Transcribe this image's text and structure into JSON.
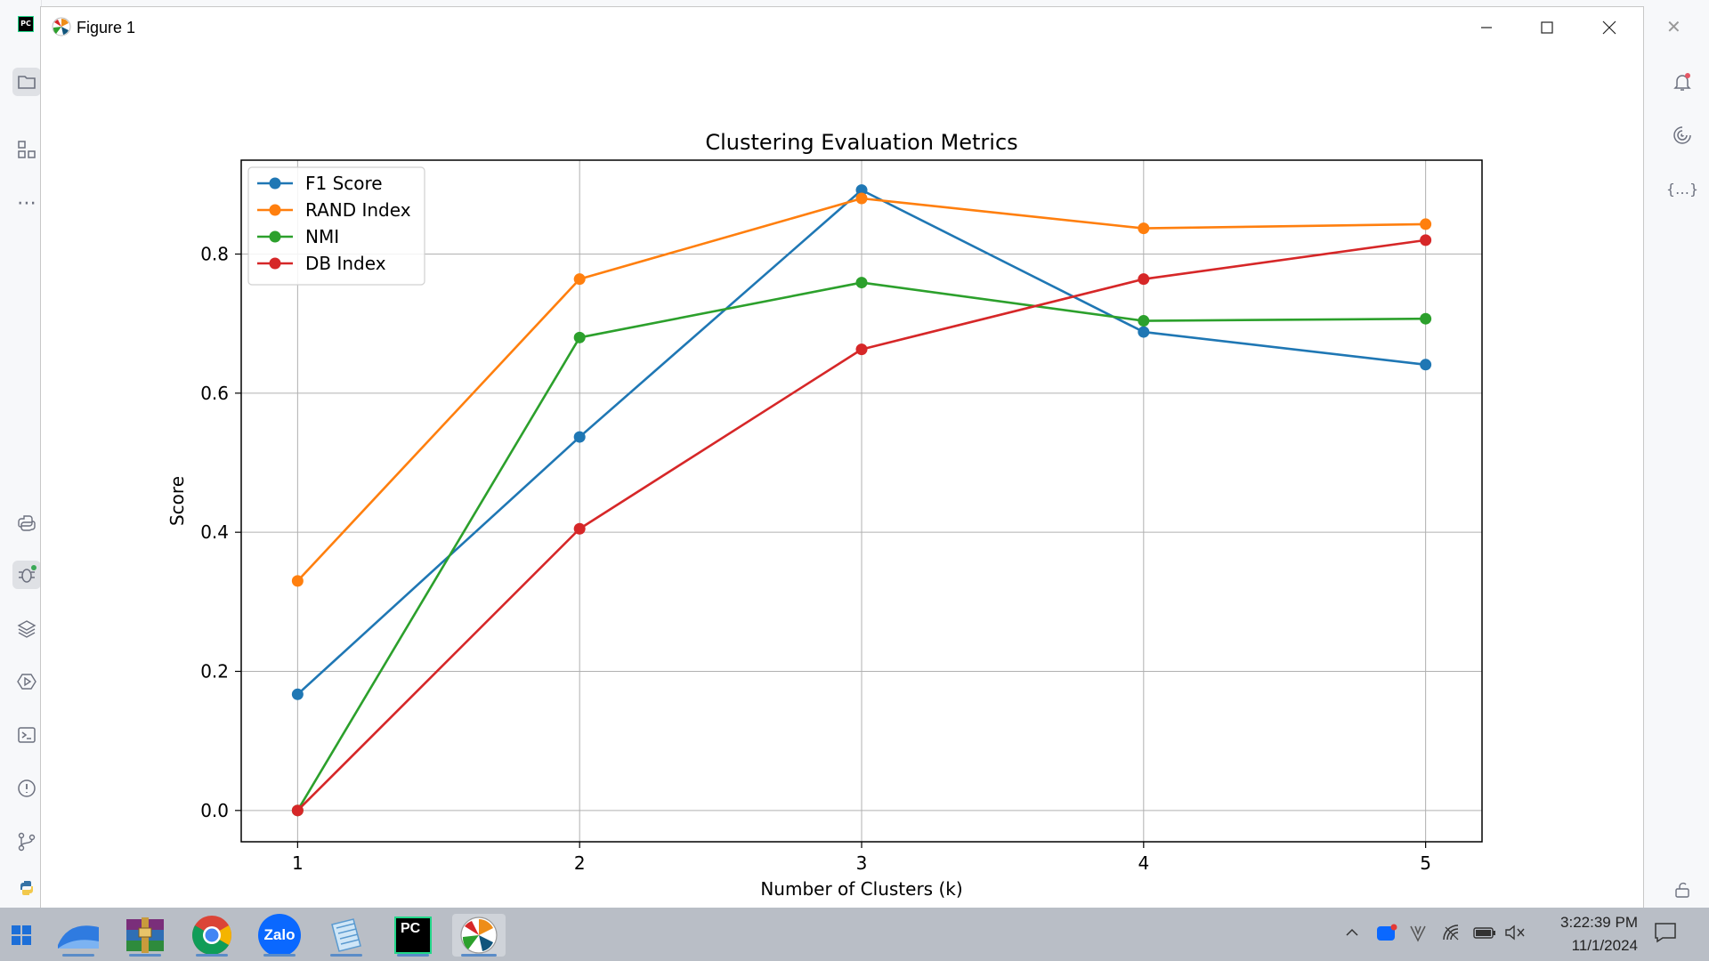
{
  "ide": {
    "logo_text": "PC"
  },
  "window": {
    "title": "Figure 1",
    "minimize_icon": "minimize-icon",
    "maximize_icon": "maximize-icon",
    "close_icon": "close-icon"
  },
  "chart_data": {
    "type": "line",
    "title": "Clustering Evaluation Metrics",
    "xlabel": "Number of Clusters (k)",
    "ylabel": "Score",
    "x": [
      1,
      2,
      3,
      4,
      5
    ],
    "xticks": [
      "1",
      "2",
      "3",
      "4",
      "5"
    ],
    "yticks": [
      "0.0",
      "0.2",
      "0.4",
      "0.6",
      "0.8"
    ],
    "xlim": [
      0.8,
      5.2
    ],
    "ylim": [
      -0.045,
      0.935
    ],
    "grid": true,
    "legend_position": "upper-left",
    "series": [
      {
        "name": "F1 Score",
        "color": "#1f77b4",
        "values": [
          0.167,
          0.537,
          0.892,
          0.688,
          0.641
        ]
      },
      {
        "name": "RAND Index",
        "color": "#ff7f0e",
        "values": [
          0.33,
          0.764,
          0.88,
          0.837,
          0.843
        ]
      },
      {
        "name": "NMI",
        "color": "#2ca02c",
        "values": [
          0.0,
          0.68,
          0.759,
          0.704,
          0.707
        ]
      },
      {
        "name": "DB Index",
        "color": "#d62728",
        "values": [
          0.0,
          0.405,
          0.663,
          0.764,
          0.82
        ]
      }
    ]
  },
  "taskbar": {
    "time": "3:22:39 PM",
    "date": "11/1/2024",
    "apps": [
      "start-icon",
      "files-icon",
      "winrar-icon",
      "chrome-icon",
      "zalo-icon",
      "notepad-icon",
      "pycharm-icon",
      "matplotlib-icon"
    ],
    "zalo_label": "Zalo",
    "pycharm_label": "PC"
  }
}
